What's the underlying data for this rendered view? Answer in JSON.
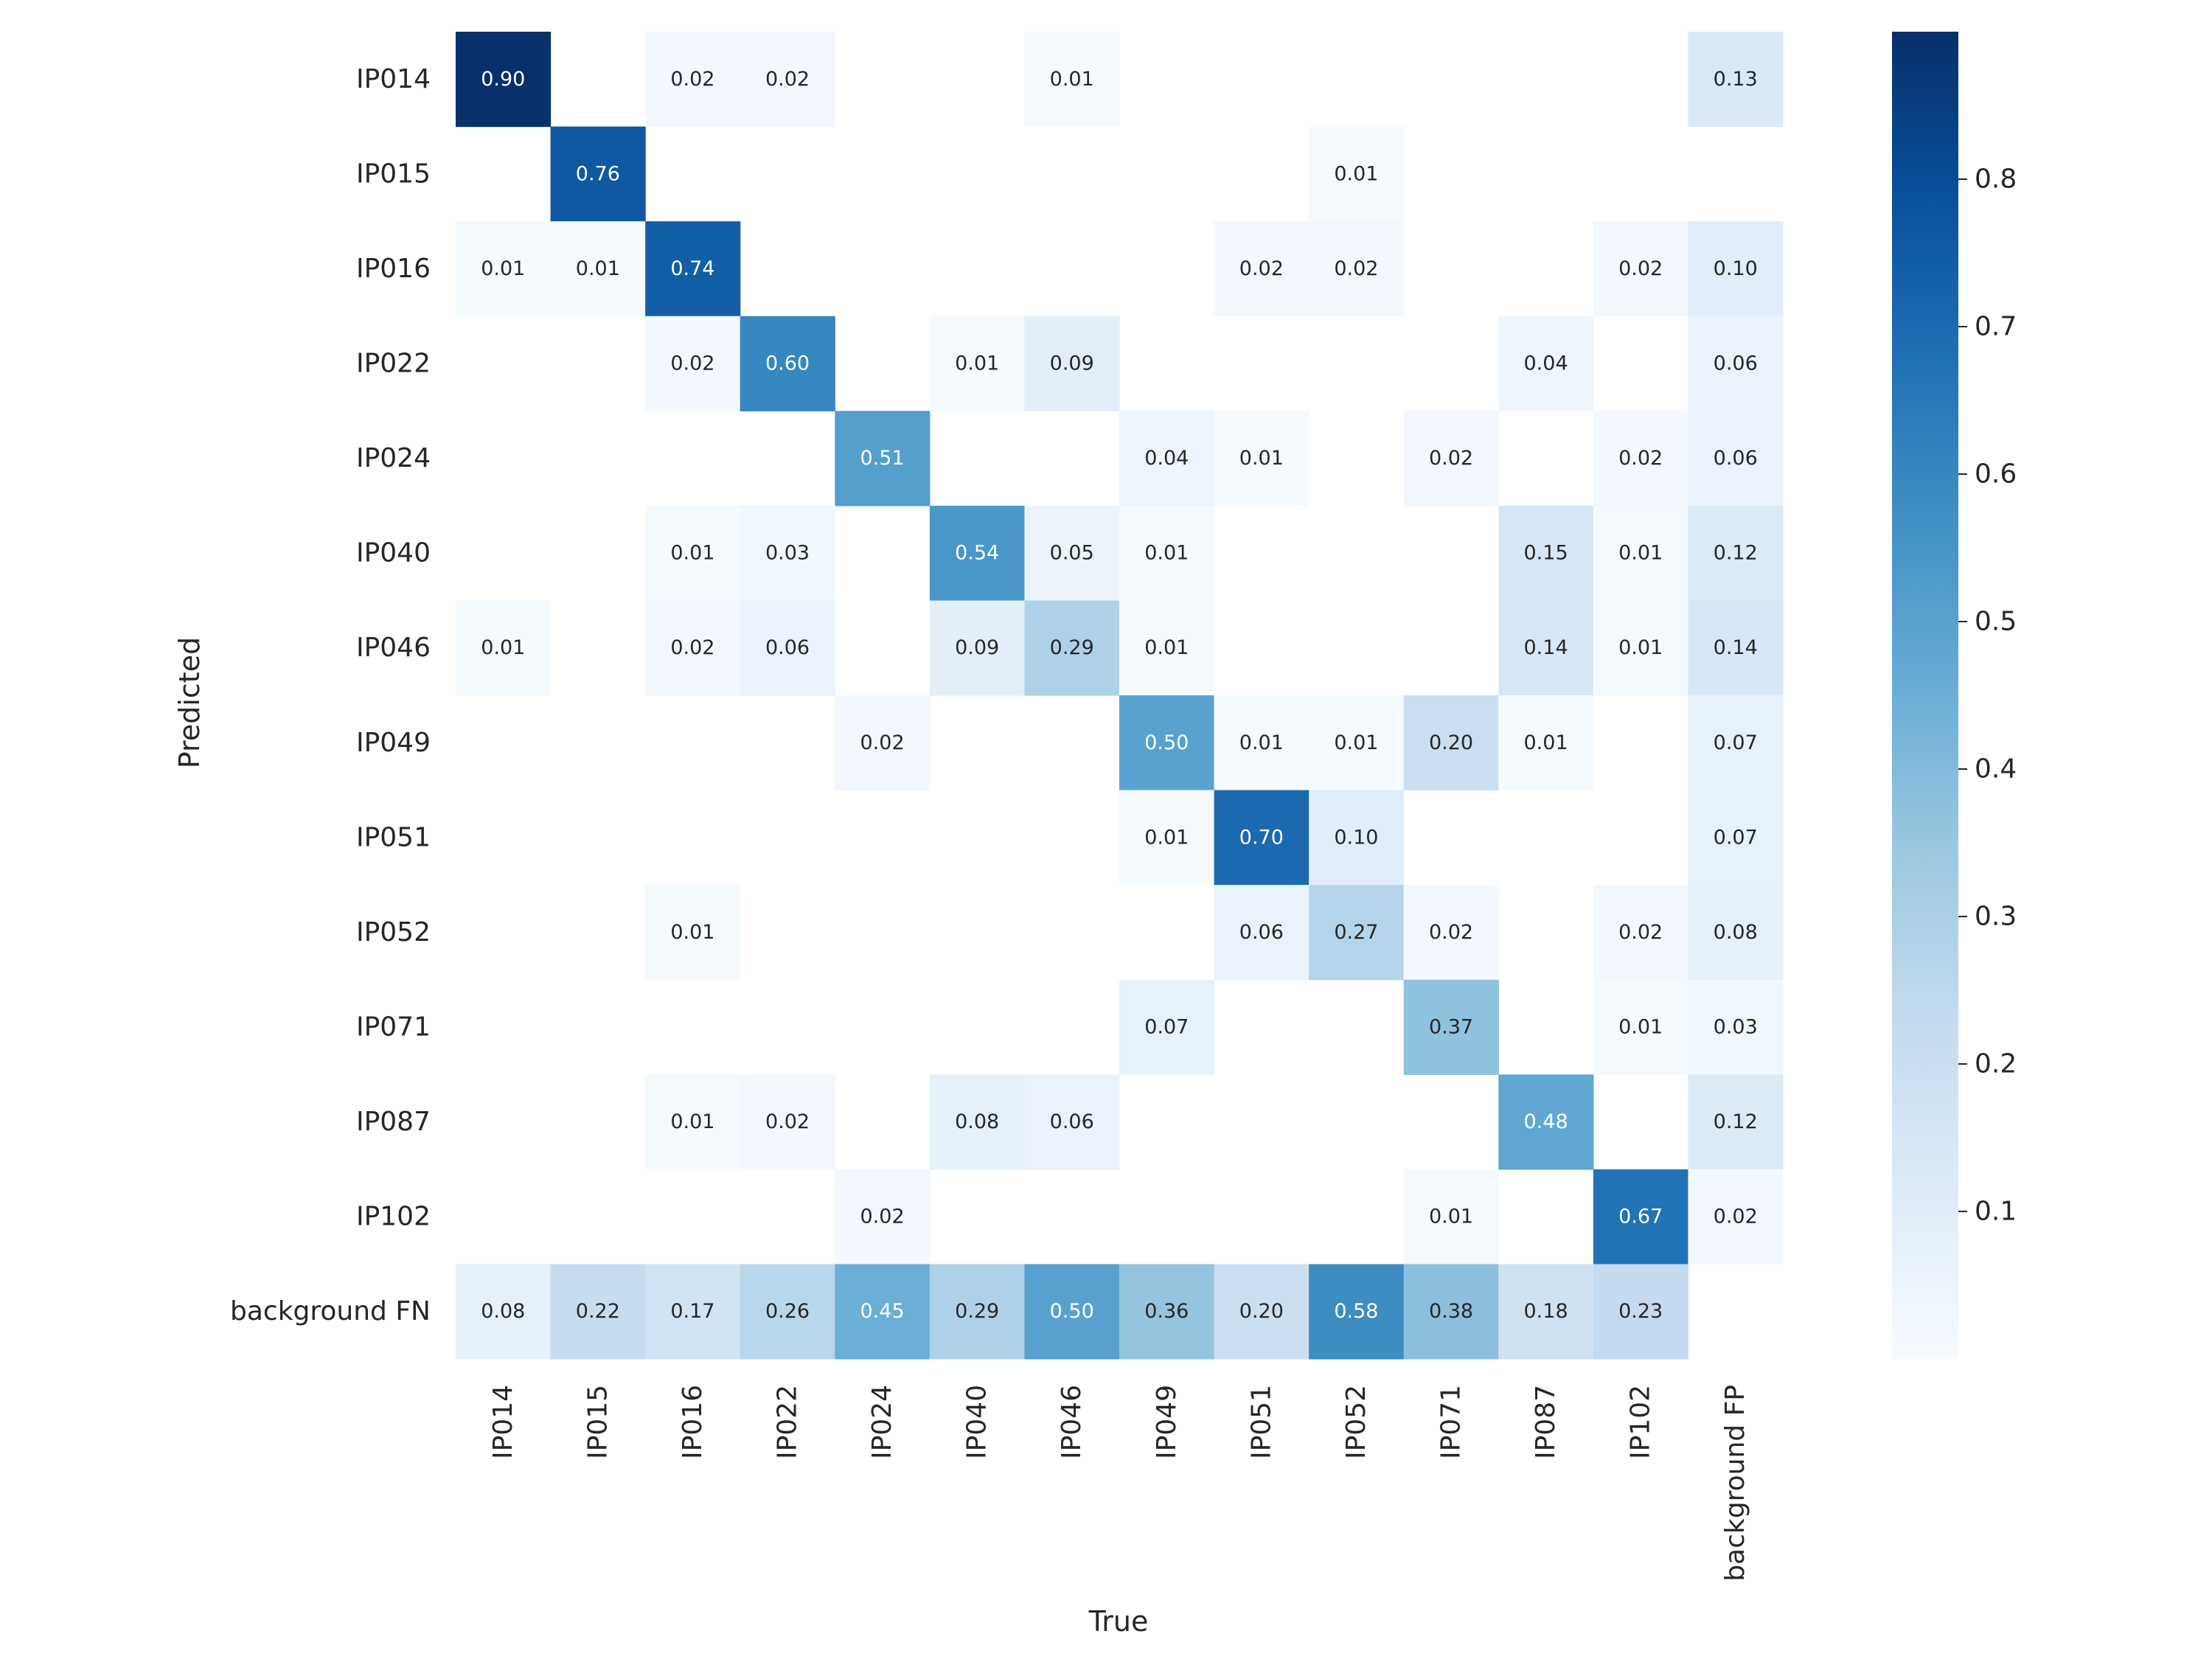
{
  "chart_data": {
    "type": "heatmap",
    "title": "",
    "xlabel": "True",
    "ylabel": "Predicted",
    "x_categories": [
      "IP014",
      "IP015",
      "IP016",
      "IP022",
      "IP024",
      "IP040",
      "IP046",
      "IP049",
      "IP051",
      "IP052",
      "IP071",
      "IP087",
      "IP102",
      "background FP"
    ],
    "y_categories": [
      "IP014",
      "IP015",
      "IP016",
      "IP022",
      "IP024",
      "IP040",
      "IP046",
      "IP049",
      "IP051",
      "IP052",
      "IP071",
      "IP087",
      "IP102",
      "background FN"
    ],
    "values": [
      [
        0.9,
        null,
        0.02,
        0.02,
        null,
        null,
        0.01,
        null,
        null,
        null,
        null,
        null,
        null,
        0.13
      ],
      [
        null,
        0.76,
        null,
        null,
        null,
        null,
        null,
        null,
        null,
        0.01,
        null,
        null,
        null,
        null
      ],
      [
        0.01,
        0.01,
        0.74,
        null,
        null,
        null,
        null,
        null,
        0.02,
        0.02,
        null,
        null,
        0.02,
        0.1
      ],
      [
        null,
        null,
        0.02,
        0.6,
        null,
        0.01,
        0.09,
        null,
        null,
        null,
        null,
        0.04,
        null,
        0.06
      ],
      [
        null,
        null,
        null,
        null,
        0.51,
        null,
        null,
        0.04,
        0.01,
        null,
        0.02,
        null,
        0.02,
        0.06
      ],
      [
        null,
        null,
        0.01,
        0.03,
        null,
        0.54,
        0.05,
        0.01,
        null,
        null,
        null,
        0.15,
        0.01,
        0.12
      ],
      [
        0.01,
        null,
        0.02,
        0.06,
        null,
        0.09,
        0.29,
        0.01,
        null,
        null,
        null,
        0.14,
        0.01,
        0.14
      ],
      [
        null,
        null,
        null,
        null,
        0.02,
        null,
        null,
        0.5,
        0.01,
        0.01,
        0.2,
        0.01,
        null,
        0.07
      ],
      [
        null,
        null,
        null,
        null,
        null,
        null,
        null,
        0.01,
        0.7,
        0.1,
        null,
        null,
        null,
        0.07
      ],
      [
        null,
        null,
        0.01,
        null,
        null,
        null,
        null,
        null,
        0.06,
        0.27,
        0.02,
        null,
        0.02,
        0.08
      ],
      [
        null,
        null,
        null,
        null,
        null,
        null,
        null,
        0.07,
        null,
        null,
        0.37,
        null,
        0.01,
        0.03
      ],
      [
        null,
        null,
        0.01,
        0.02,
        null,
        0.08,
        0.06,
        null,
        null,
        null,
        null,
        0.48,
        null,
        0.12
      ],
      [
        null,
        null,
        null,
        null,
        0.02,
        null,
        null,
        null,
        null,
        null,
        0.01,
        null,
        0.67,
        0.02
      ],
      [
        0.08,
        0.22,
        0.17,
        0.26,
        0.45,
        0.29,
        0.5,
        0.36,
        0.2,
        0.58,
        0.38,
        0.18,
        0.23,
        null
      ]
    ],
    "colorbar": {
      "range": [
        0.0,
        0.9
      ],
      "ticks": [
        0.1,
        0.2,
        0.3,
        0.4,
        0.5,
        0.6,
        0.7,
        0.8
      ],
      "tick_labels": [
        "0.1",
        "0.2",
        "0.3",
        "0.4",
        "0.5",
        "0.6",
        "0.7",
        "0.8"
      ]
    },
    "colormap": "Blues",
    "text_dark": "#262626",
    "text_light": "#ffffff"
  }
}
